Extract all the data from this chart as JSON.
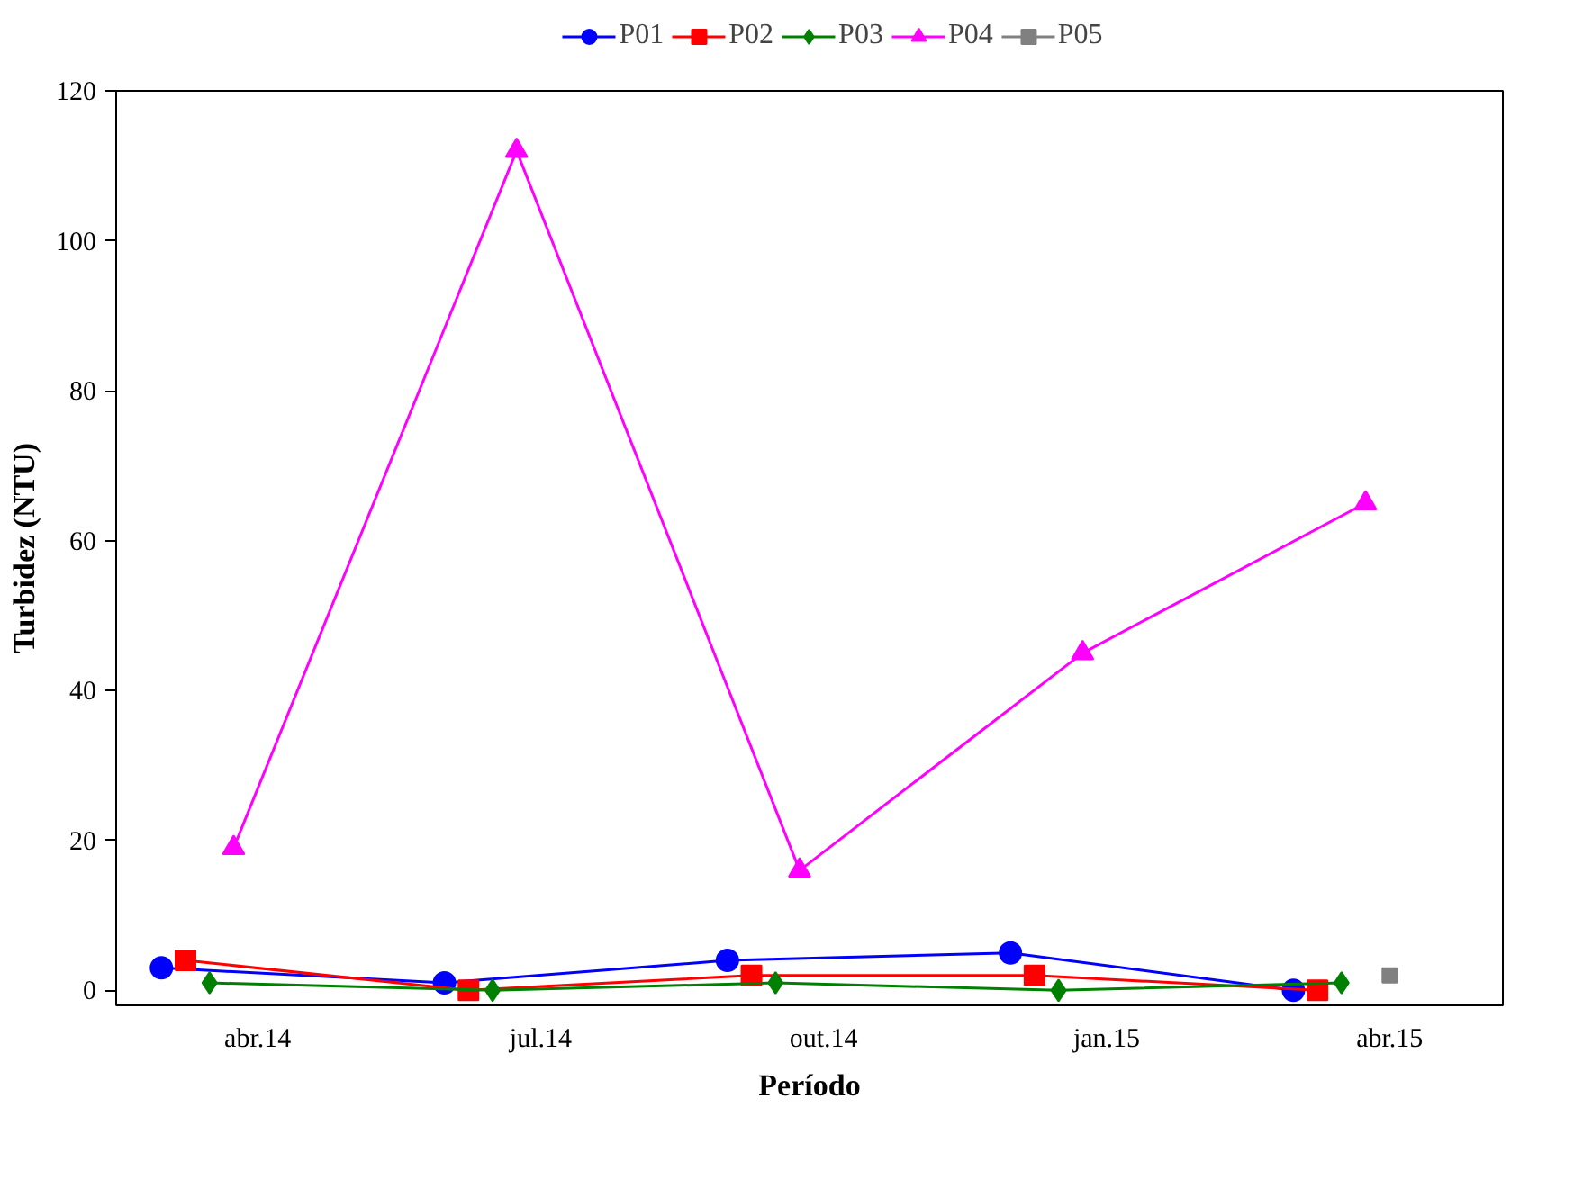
{
  "chart_data": {
    "type": "line",
    "xlabel": "Período",
    "ylabel": "Turbidez (NTU)",
    "categories": [
      "abr.14",
      "jul.14",
      "out.14",
      "jan.15",
      "abr.15"
    ],
    "ylim": [
      -2,
      120
    ],
    "yticks": [
      0,
      20,
      40,
      60,
      80,
      100,
      120
    ],
    "grid": false,
    "legend": "top",
    "series": [
      {
        "name": "P01",
        "color": "#0000ff",
        "marker": "circle",
        "values": [
          3,
          1,
          4,
          5,
          0
        ]
      },
      {
        "name": "P02",
        "color": "#ff0000",
        "marker": "square",
        "values": [
          4,
          0,
          2,
          2,
          0
        ]
      },
      {
        "name": "P03",
        "color": "#008000",
        "marker": "diamond",
        "values": [
          1,
          0,
          1,
          0,
          1
        ]
      },
      {
        "name": "P04",
        "color": "#ff00ff",
        "marker": "triangle",
        "values": [
          19,
          112,
          16,
          45,
          65
        ]
      },
      {
        "name": "P05",
        "color": "#808080",
        "marker": "square",
        "values": [
          null,
          null,
          null,
          null,
          2
        ]
      }
    ]
  }
}
